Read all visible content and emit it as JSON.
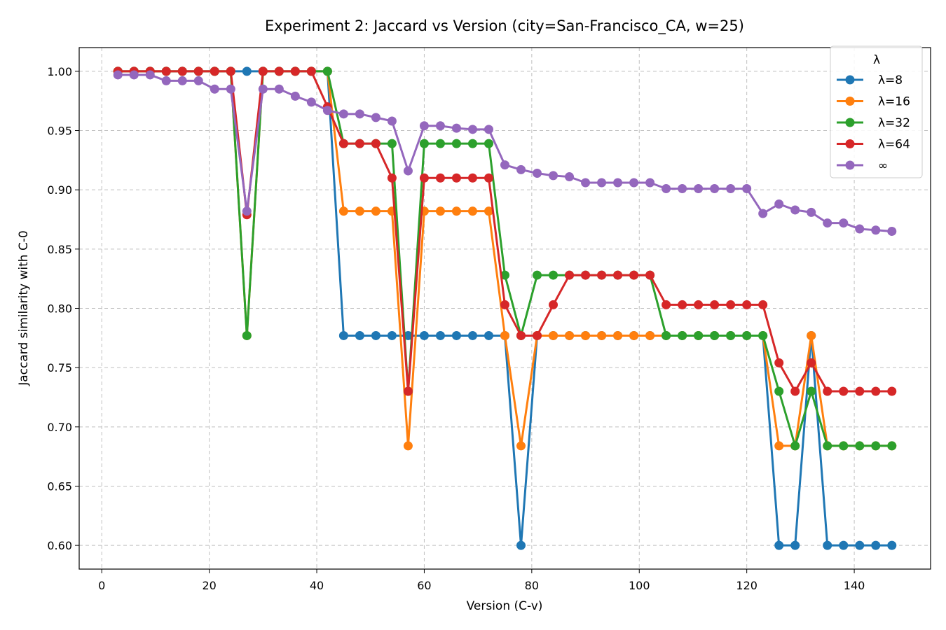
{
  "chart_data": {
    "type": "line",
    "title": "Experiment 2: Jaccard vs Version  (city=San-Francisco_CA, w=25)",
    "xlabel": "Version (C-v)",
    "ylabel": "Jaccard similarity with C-0",
    "xlim": [
      -4.2,
      154.2
    ],
    "ylim": [
      0.58,
      1.02
    ],
    "xticks": [
      0,
      20,
      40,
      60,
      80,
      100,
      120,
      140
    ],
    "xtick_labels": [
      "0",
      "20",
      "40",
      "60",
      "80",
      "100",
      "120",
      "140"
    ],
    "yticks": [
      0.6,
      0.65,
      0.7,
      0.75,
      0.8,
      0.85,
      0.9,
      0.95,
      1.0
    ],
    "ytick_labels": [
      "0.60",
      "0.65",
      "0.70",
      "0.75",
      "0.80",
      "0.85",
      "0.90",
      "0.95",
      "1.00"
    ],
    "grid": true,
    "legend_title": "λ",
    "legend_position": "top-right",
    "x": [
      3,
      6,
      9,
      12,
      15,
      18,
      21,
      24,
      27,
      30,
      33,
      36,
      39,
      42,
      45,
      48,
      51,
      54,
      57,
      60,
      63,
      66,
      69,
      72,
      75,
      78,
      81,
      84,
      87,
      90,
      93,
      96,
      99,
      102,
      105,
      108,
      111,
      114,
      117,
      120,
      123,
      126,
      129,
      132,
      135,
      138,
      141,
      144,
      147
    ],
    "series": [
      {
        "name": "λ=8",
        "color": "#1f77b4",
        "values": [
          1.0,
          1.0,
          1.0,
          1.0,
          1.0,
          1.0,
          1.0,
          1.0,
          1.0,
          1.0,
          1.0,
          1.0,
          1.0,
          1.0,
          0.777,
          0.777,
          0.777,
          0.777,
          0.777,
          0.777,
          0.777,
          0.777,
          0.777,
          0.777,
          0.777,
          0.6,
          0.777,
          0.777,
          0.777,
          0.777,
          0.777,
          0.777,
          0.777,
          0.777,
          0.777,
          0.777,
          0.777,
          0.777,
          0.777,
          0.777,
          0.777,
          0.6,
          0.6,
          0.777,
          0.6,
          0.6,
          0.6,
          0.6,
          0.6
        ]
      },
      {
        "name": "λ=16",
        "color": "#ff7f0e",
        "values": [
          1.0,
          1.0,
          1.0,
          1.0,
          1.0,
          1.0,
          1.0,
          1.0,
          0.777,
          1.0,
          1.0,
          1.0,
          1.0,
          1.0,
          0.882,
          0.882,
          0.882,
          0.882,
          0.684,
          0.882,
          0.882,
          0.882,
          0.882,
          0.882,
          0.777,
          0.684,
          0.777,
          0.777,
          0.777,
          0.777,
          0.777,
          0.777,
          0.777,
          0.777,
          0.777,
          0.777,
          0.777,
          0.777,
          0.777,
          0.777,
          0.777,
          0.684,
          0.684,
          0.777,
          0.684,
          0.684,
          0.684,
          0.684,
          0.684
        ]
      },
      {
        "name": "λ=32",
        "color": "#2ca02c",
        "values": [
          1.0,
          1.0,
          1.0,
          1.0,
          1.0,
          1.0,
          1.0,
          1.0,
          0.777,
          1.0,
          1.0,
          1.0,
          1.0,
          1.0,
          0.939,
          0.939,
          0.939,
          0.939,
          0.73,
          0.939,
          0.939,
          0.939,
          0.939,
          0.939,
          0.828,
          0.777,
          0.828,
          0.828,
          0.828,
          0.828,
          0.828,
          0.828,
          0.828,
          0.828,
          0.777,
          0.777,
          0.777,
          0.777,
          0.777,
          0.777,
          0.777,
          0.73,
          0.684,
          0.73,
          0.684,
          0.684,
          0.684,
          0.684,
          0.684
        ]
      },
      {
        "name": "λ=64",
        "color": "#d62728",
        "values": [
          1.0,
          1.0,
          1.0,
          1.0,
          1.0,
          1.0,
          1.0,
          1.0,
          0.879,
          1.0,
          1.0,
          1.0,
          1.0,
          0.97,
          0.939,
          0.939,
          0.939,
          0.91,
          0.73,
          0.91,
          0.91,
          0.91,
          0.91,
          0.91,
          0.803,
          0.777,
          0.777,
          0.803,
          0.828,
          0.828,
          0.828,
          0.828,
          0.828,
          0.828,
          0.803,
          0.803,
          0.803,
          0.803,
          0.803,
          0.803,
          0.803,
          0.754,
          0.73,
          0.754,
          0.73,
          0.73,
          0.73,
          0.73,
          0.73
        ]
      },
      {
        "name": "∞",
        "color": "#9467bd",
        "values": [
          0.997,
          0.997,
          0.997,
          0.992,
          0.992,
          0.992,
          0.985,
          0.985,
          0.882,
          0.985,
          0.985,
          0.979,
          0.974,
          0.967,
          0.964,
          0.964,
          0.961,
          0.958,
          0.916,
          0.954,
          0.954,
          0.952,
          0.951,
          0.951,
          0.921,
          0.917,
          0.914,
          0.912,
          0.911,
          0.906,
          0.906,
          0.906,
          0.906,
          0.906,
          0.901,
          0.901,
          0.901,
          0.901,
          0.901,
          0.901,
          0.88,
          0.888,
          0.883,
          0.881,
          0.872,
          0.872,
          0.867,
          0.866,
          0.865
        ]
      }
    ]
  }
}
